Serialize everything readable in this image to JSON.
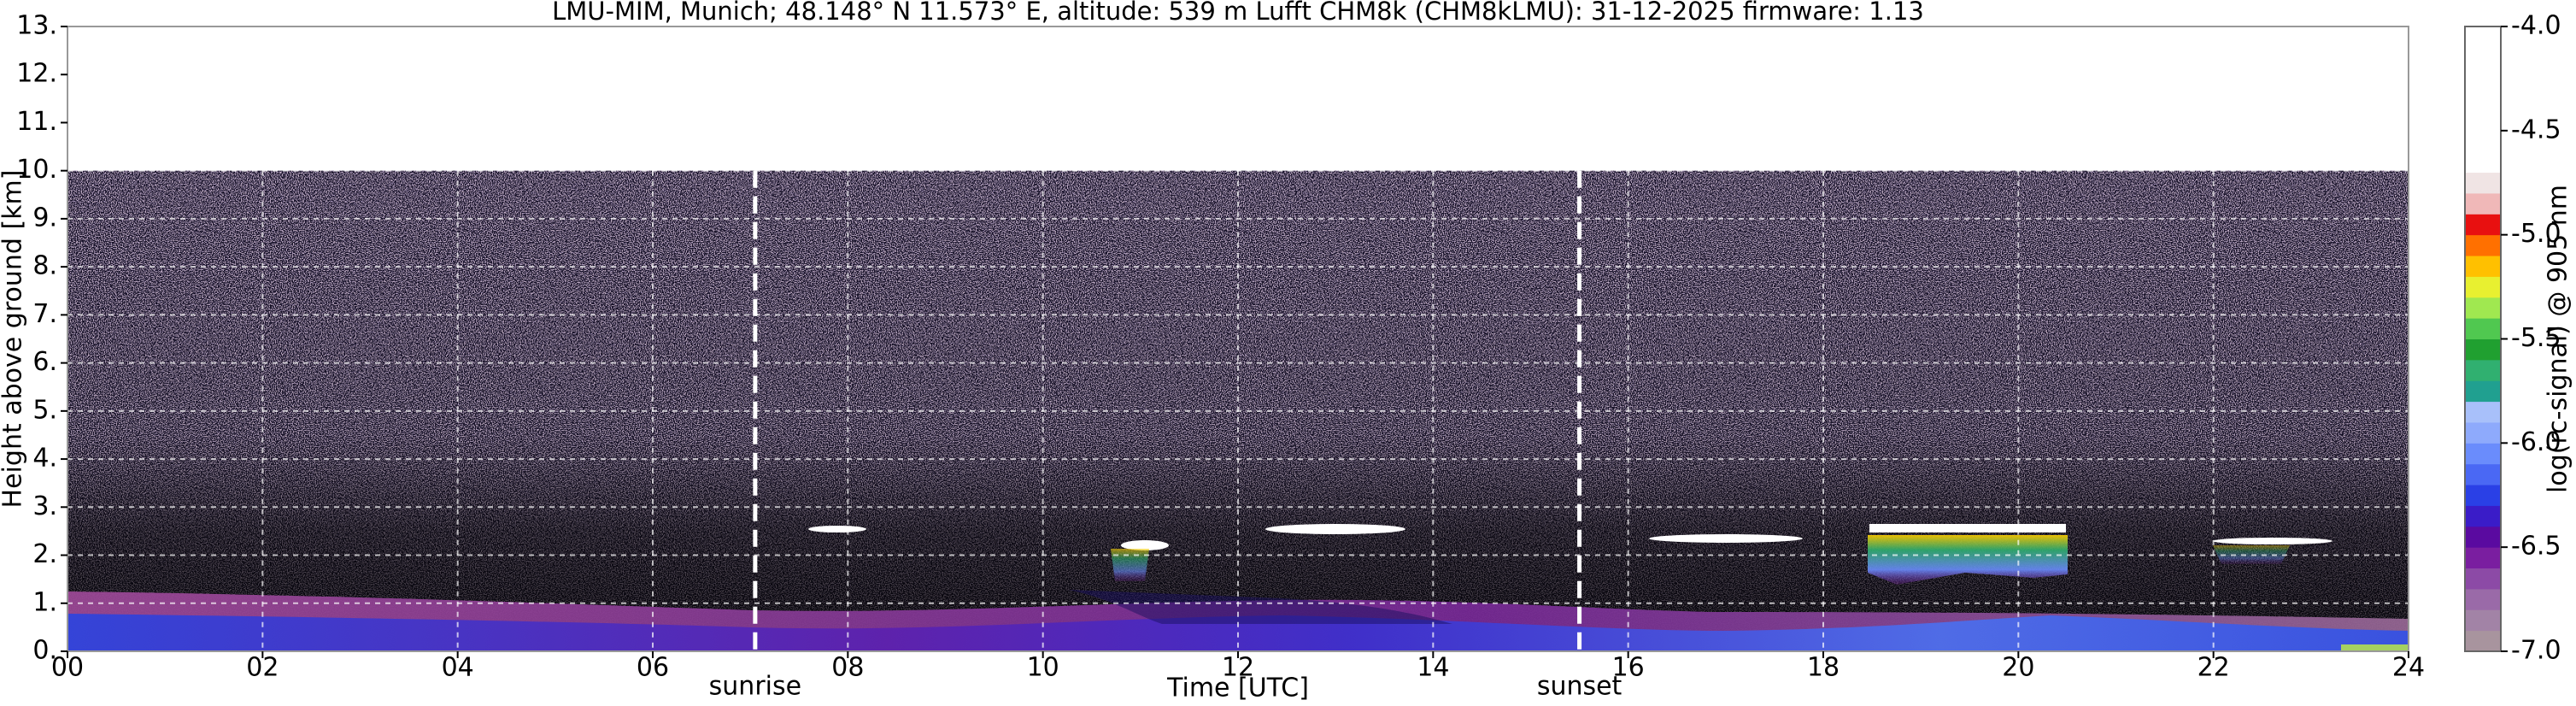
{
  "chart_data": {
    "type": "heatmap",
    "title": "LMU-MIM, Munich; 48.148° N 11.573° E, altitude: 539 m    Lufft CHM8k (CHM8kLMU): 31-12-2025    firmware: 1.13",
    "xlabel": "Time [UTC]",
    "ylabel": "Height above ground [km]",
    "xlim": [
      0,
      24
    ],
    "xticks": [
      {
        "value": 0,
        "label": "00"
      },
      {
        "value": 2,
        "label": "02"
      },
      {
        "value": 4,
        "label": "04"
      },
      {
        "value": 6,
        "label": "06"
      },
      {
        "value": 8,
        "label": "08"
      },
      10,
      12,
      14,
      16,
      18,
      20,
      22,
      24
    ],
    "ylim": [
      0,
      13
    ],
    "yticks": [
      {
        "value": 0,
        "label": "0."
      },
      {
        "value": 1,
        "label": "1."
      },
      {
        "value": 2,
        "label": "2."
      },
      {
        "value": 3,
        "label": "3."
      },
      {
        "value": 4,
        "label": "4."
      },
      {
        "value": 5,
        "label": "5."
      },
      {
        "value": 6,
        "label": "6."
      },
      {
        "value": 7,
        "label": "7."
      },
      {
        "value": 8,
        "label": "8."
      },
      {
        "value": 9,
        "label": "9."
      },
      {
        "value": 10,
        "label": "10."
      },
      {
        "value": 11,
        "label": "11."
      },
      {
        "value": 12,
        "label": "12."
      },
      {
        "value": 13,
        "label": "13."
      }
    ],
    "grid": true,
    "annotations": [
      {
        "text": "sunrise",
        "x": 7.05
      },
      {
        "text": "sunset",
        "x": 15.5
      }
    ],
    "colorbar": {
      "label": "log(rc-signal) @ 905 nm",
      "clim": [
        -7,
        -4
      ],
      "ticks": [
        {
          "value": -4,
          "label": "-4.0"
        },
        -4.5,
        {
          "value": -5,
          "label": "-5.0"
        },
        -5.5,
        {
          "value": -6,
          "label": "-6.0"
        },
        -6.5,
        {
          "value": -7,
          "label": "-7.0"
        }
      ],
      "colors": [
        "#a8949e",
        "#a283a6",
        "#9a6aa8",
        "#8c4aa6",
        "#7a1ea0",
        "#5a0aa0",
        "#3a1cc8",
        "#2a40e6",
        "#4a68f4",
        "#6a8cfc",
        "#8eaafc",
        "#a8c0fa",
        "#20a090",
        "#30b070",
        "#20a030",
        "#50c850",
        "#a0e850",
        "#e8f030",
        "#ffc000",
        "#ff7000",
        "#e81010",
        "#f0b8b8",
        "#f0e4e4",
        "#ffffff",
        "#ffffff",
        "#ffffff",
        "#ffffff",
        "#ffffff",
        "#ffffff",
        "#ffffff"
      ]
    }
  }
}
